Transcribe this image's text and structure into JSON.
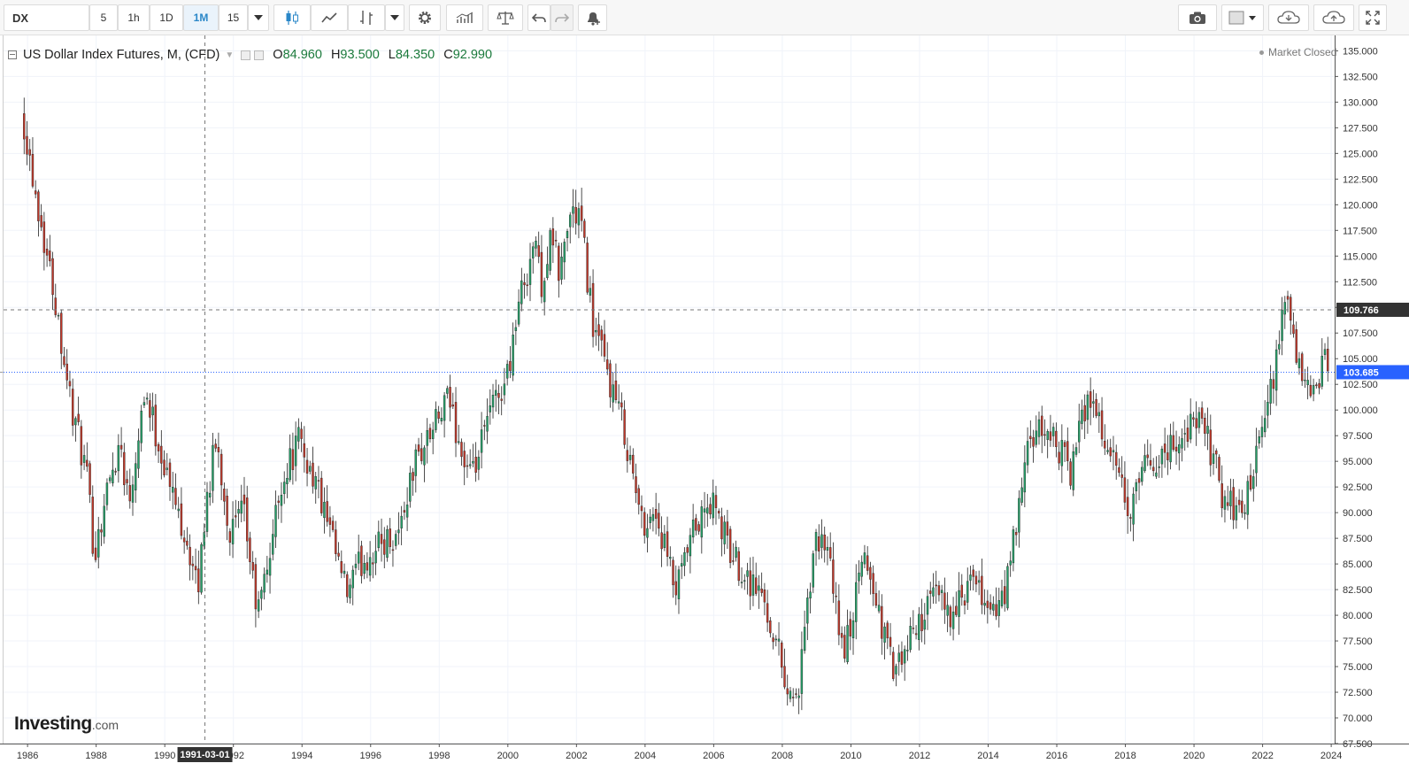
{
  "toolbar": {
    "symbol": "DX",
    "intervals": [
      "5",
      "1h",
      "1D",
      "1M",
      "15"
    ],
    "active_interval": "1M",
    "icons": [
      "candles-icon",
      "line-chart-icon",
      "indicators-icon",
      "settings-icon",
      "bar-compare-icon",
      "compare-scale-icon",
      "undo-icon",
      "redo-icon",
      "alert-icon",
      "camera-icon",
      "color-box-icon",
      "cloud-load-icon",
      "cloud-save-icon",
      "fullscreen-icon"
    ]
  },
  "legend": {
    "title": "US Dollar Index Futures, M, (CFD)",
    "open_label": "O",
    "open": "84.960",
    "high_label": "H",
    "high": "93.500",
    "low_label": "L",
    "low": "84.350",
    "close_label": "C",
    "close": "92.990"
  },
  "market_status": "Market Closed",
  "brand": {
    "logo_main": "Investing",
    "logo_suffix": ".com"
  },
  "colors": {
    "up": "#26a069",
    "down": "#c0392b",
    "last_price": "#2962ff",
    "crosshair_price": "#333333",
    "grid": "#f0f3fa",
    "axis_text": "#333333"
  },
  "chart_data": {
    "type": "candlestick",
    "interval": "monthly",
    "xlim": [
      1985.3,
      2024.1
    ],
    "ylim": [
      67.5,
      136.5
    ],
    "y_ticks": [
      "135.000",
      "132.500",
      "130.000",
      "127.500",
      "125.000",
      "122.500",
      "120.000",
      "117.500",
      "115.000",
      "112.500",
      "110.000",
      "107.500",
      "105.000",
      "102.500",
      "100.000",
      "97.500",
      "95.000",
      "92.500",
      "90.000",
      "87.500",
      "85.000",
      "82.500",
      "80.000",
      "77.500",
      "75.000",
      "72.500",
      "70.000",
      "67.500"
    ],
    "x_ticks": [
      "1986",
      "1988",
      "1990",
      "1992",
      "1994",
      "1996",
      "1998",
      "2000",
      "2002",
      "2004",
      "2006",
      "2008",
      "2010",
      "2012",
      "2014",
      "2016",
      "2018",
      "2020",
      "2022",
      "2024"
    ],
    "crosshair": {
      "date": "1991-03-01",
      "x": 1991.17,
      "price": 109.766,
      "price_label": "109.766"
    },
    "last_price": {
      "value": 103.685,
      "label": "103.685"
    },
    "series": [
      {
        "name": "US Dollar Index Futures",
        "points": [
          [
            1985.9,
            128.0
          ],
          [
            1986.3,
            120.0
          ],
          [
            1986.8,
            111.0
          ],
          [
            1987.3,
            100.0
          ],
          [
            1987.7,
            94.0
          ],
          [
            1987.95,
            86.0
          ],
          [
            1988.3,
            92.0
          ],
          [
            1988.7,
            97.0
          ],
          [
            1988.95,
            91.0
          ],
          [
            1989.4,
            102.0
          ],
          [
            1989.8,
            97.0
          ],
          [
            1990.2,
            92.0
          ],
          [
            1990.6,
            88.0
          ],
          [
            1990.95,
            82.0
          ],
          [
            1991.2,
            91.0
          ],
          [
            1991.5,
            97.0
          ],
          [
            1991.9,
            88.0
          ],
          [
            1992.3,
            90.0
          ],
          [
            1992.7,
            80.0
          ],
          [
            1992.95,
            84.0
          ],
          [
            1993.4,
            93.0
          ],
          [
            1993.9,
            97.0
          ],
          [
            1994.4,
            93.0
          ],
          [
            1994.8,
            88.0
          ],
          [
            1995.3,
            82.0
          ],
          [
            1995.7,
            85.0
          ],
          [
            1996.3,
            87.0
          ],
          [
            1996.8,
            88.0
          ],
          [
            1997.3,
            95.0
          ],
          [
            1997.8,
            98.0
          ],
          [
            1998.3,
            101.0
          ],
          [
            1998.7,
            95.0
          ],
          [
            1998.95,
            93.0
          ],
          [
            1999.5,
            100.0
          ],
          [
            1999.95,
            103.0
          ],
          [
            2000.3,
            110.0
          ],
          [
            2000.8,
            117.0
          ],
          [
            2000.95,
            112.0
          ],
          [
            2001.3,
            117.0
          ],
          [
            2001.5,
            113.0
          ],
          [
            2001.8,
            119.0
          ],
          [
            2002.1,
            119.0
          ],
          [
            2002.5,
            108.0
          ],
          [
            2002.95,
            103.0
          ],
          [
            2003.4,
            98.0
          ],
          [
            2003.9,
            89.0
          ],
          [
            2004.3,
            90.0
          ],
          [
            2004.9,
            82.0
          ],
          [
            2005.4,
            88.0
          ],
          [
            2005.95,
            91.0
          ],
          [
            2006.5,
            86.0
          ],
          [
            2006.95,
            84.0
          ],
          [
            2007.4,
            82.0
          ],
          [
            2007.95,
            76.0
          ],
          [
            2008.2,
            72.0
          ],
          [
            2008.5,
            73.0
          ],
          [
            2008.9,
            86.0
          ],
          [
            2009.2,
            88.0
          ],
          [
            2009.8,
            76.0
          ],
          [
            2010.4,
            86.0
          ],
          [
            2010.9,
            79.0
          ],
          [
            2011.3,
            74.0
          ],
          [
            2011.9,
            79.0
          ],
          [
            2012.5,
            82.0
          ],
          [
            2013.0,
            80.0
          ],
          [
            2013.5,
            83.0
          ],
          [
            2014.3,
            80.0
          ],
          [
            2014.6,
            84.0
          ],
          [
            2015.2,
            97.0
          ],
          [
            2015.8,
            98.0
          ],
          [
            2016.4,
            94.0
          ],
          [
            2016.95,
            102.0
          ],
          [
            2017.5,
            96.0
          ],
          [
            2017.95,
            92.0
          ],
          [
            2018.1,
            89.0
          ],
          [
            2018.5,
            94.0
          ],
          [
            2019.2,
            96.0
          ],
          [
            2019.8,
            98.0
          ],
          [
            2020.2,
            99.0
          ],
          [
            2020.5,
            96.0
          ],
          [
            2020.9,
            91.0
          ],
          [
            2021.4,
            90.0
          ],
          [
            2021.9,
            96.0
          ],
          [
            2022.3,
            103.0
          ],
          [
            2022.75,
            112.0
          ],
          [
            2022.95,
            104.0
          ],
          [
            2023.4,
            102.0
          ],
          [
            2023.6,
            101.0
          ],
          [
            2023.8,
            106.0
          ],
          [
            2023.95,
            103.685
          ]
        ]
      }
    ]
  }
}
